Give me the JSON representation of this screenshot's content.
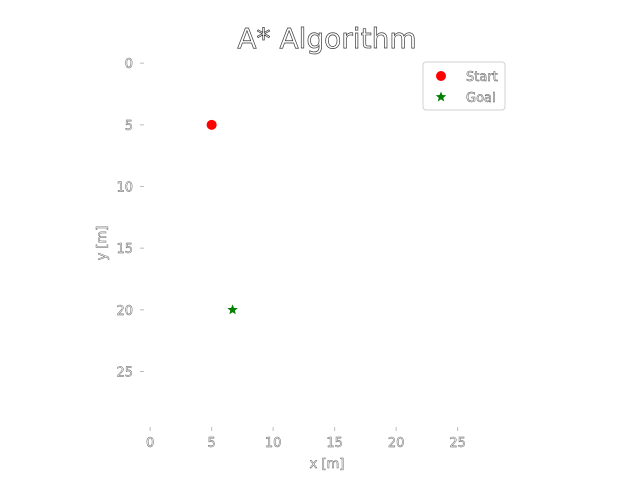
{
  "chart_data": {
    "type": "scatter",
    "title": "A* Algorithm",
    "xlabel": "x [m]",
    "ylabel": "y [m]",
    "xlim": [
      -0.5,
      29.5
    ],
    "ylim": [
      29.5,
      -0.5
    ],
    "y_inverted": true,
    "x_ticks": [
      0,
      5,
      10,
      15,
      20,
      25
    ],
    "y_ticks": [
      0,
      5,
      10,
      15,
      20,
      25
    ],
    "grid": false,
    "legend_position": "top-right",
    "series": [
      {
        "name": "Start",
        "marker": "circle",
        "color": "#ff0000",
        "points": [
          {
            "x": 5,
            "y": 5
          }
        ]
      },
      {
        "name": "Goal",
        "marker": "star",
        "color": "#008000",
        "points": [
          {
            "x": 6.7,
            "y": 20
          }
        ]
      }
    ]
  }
}
